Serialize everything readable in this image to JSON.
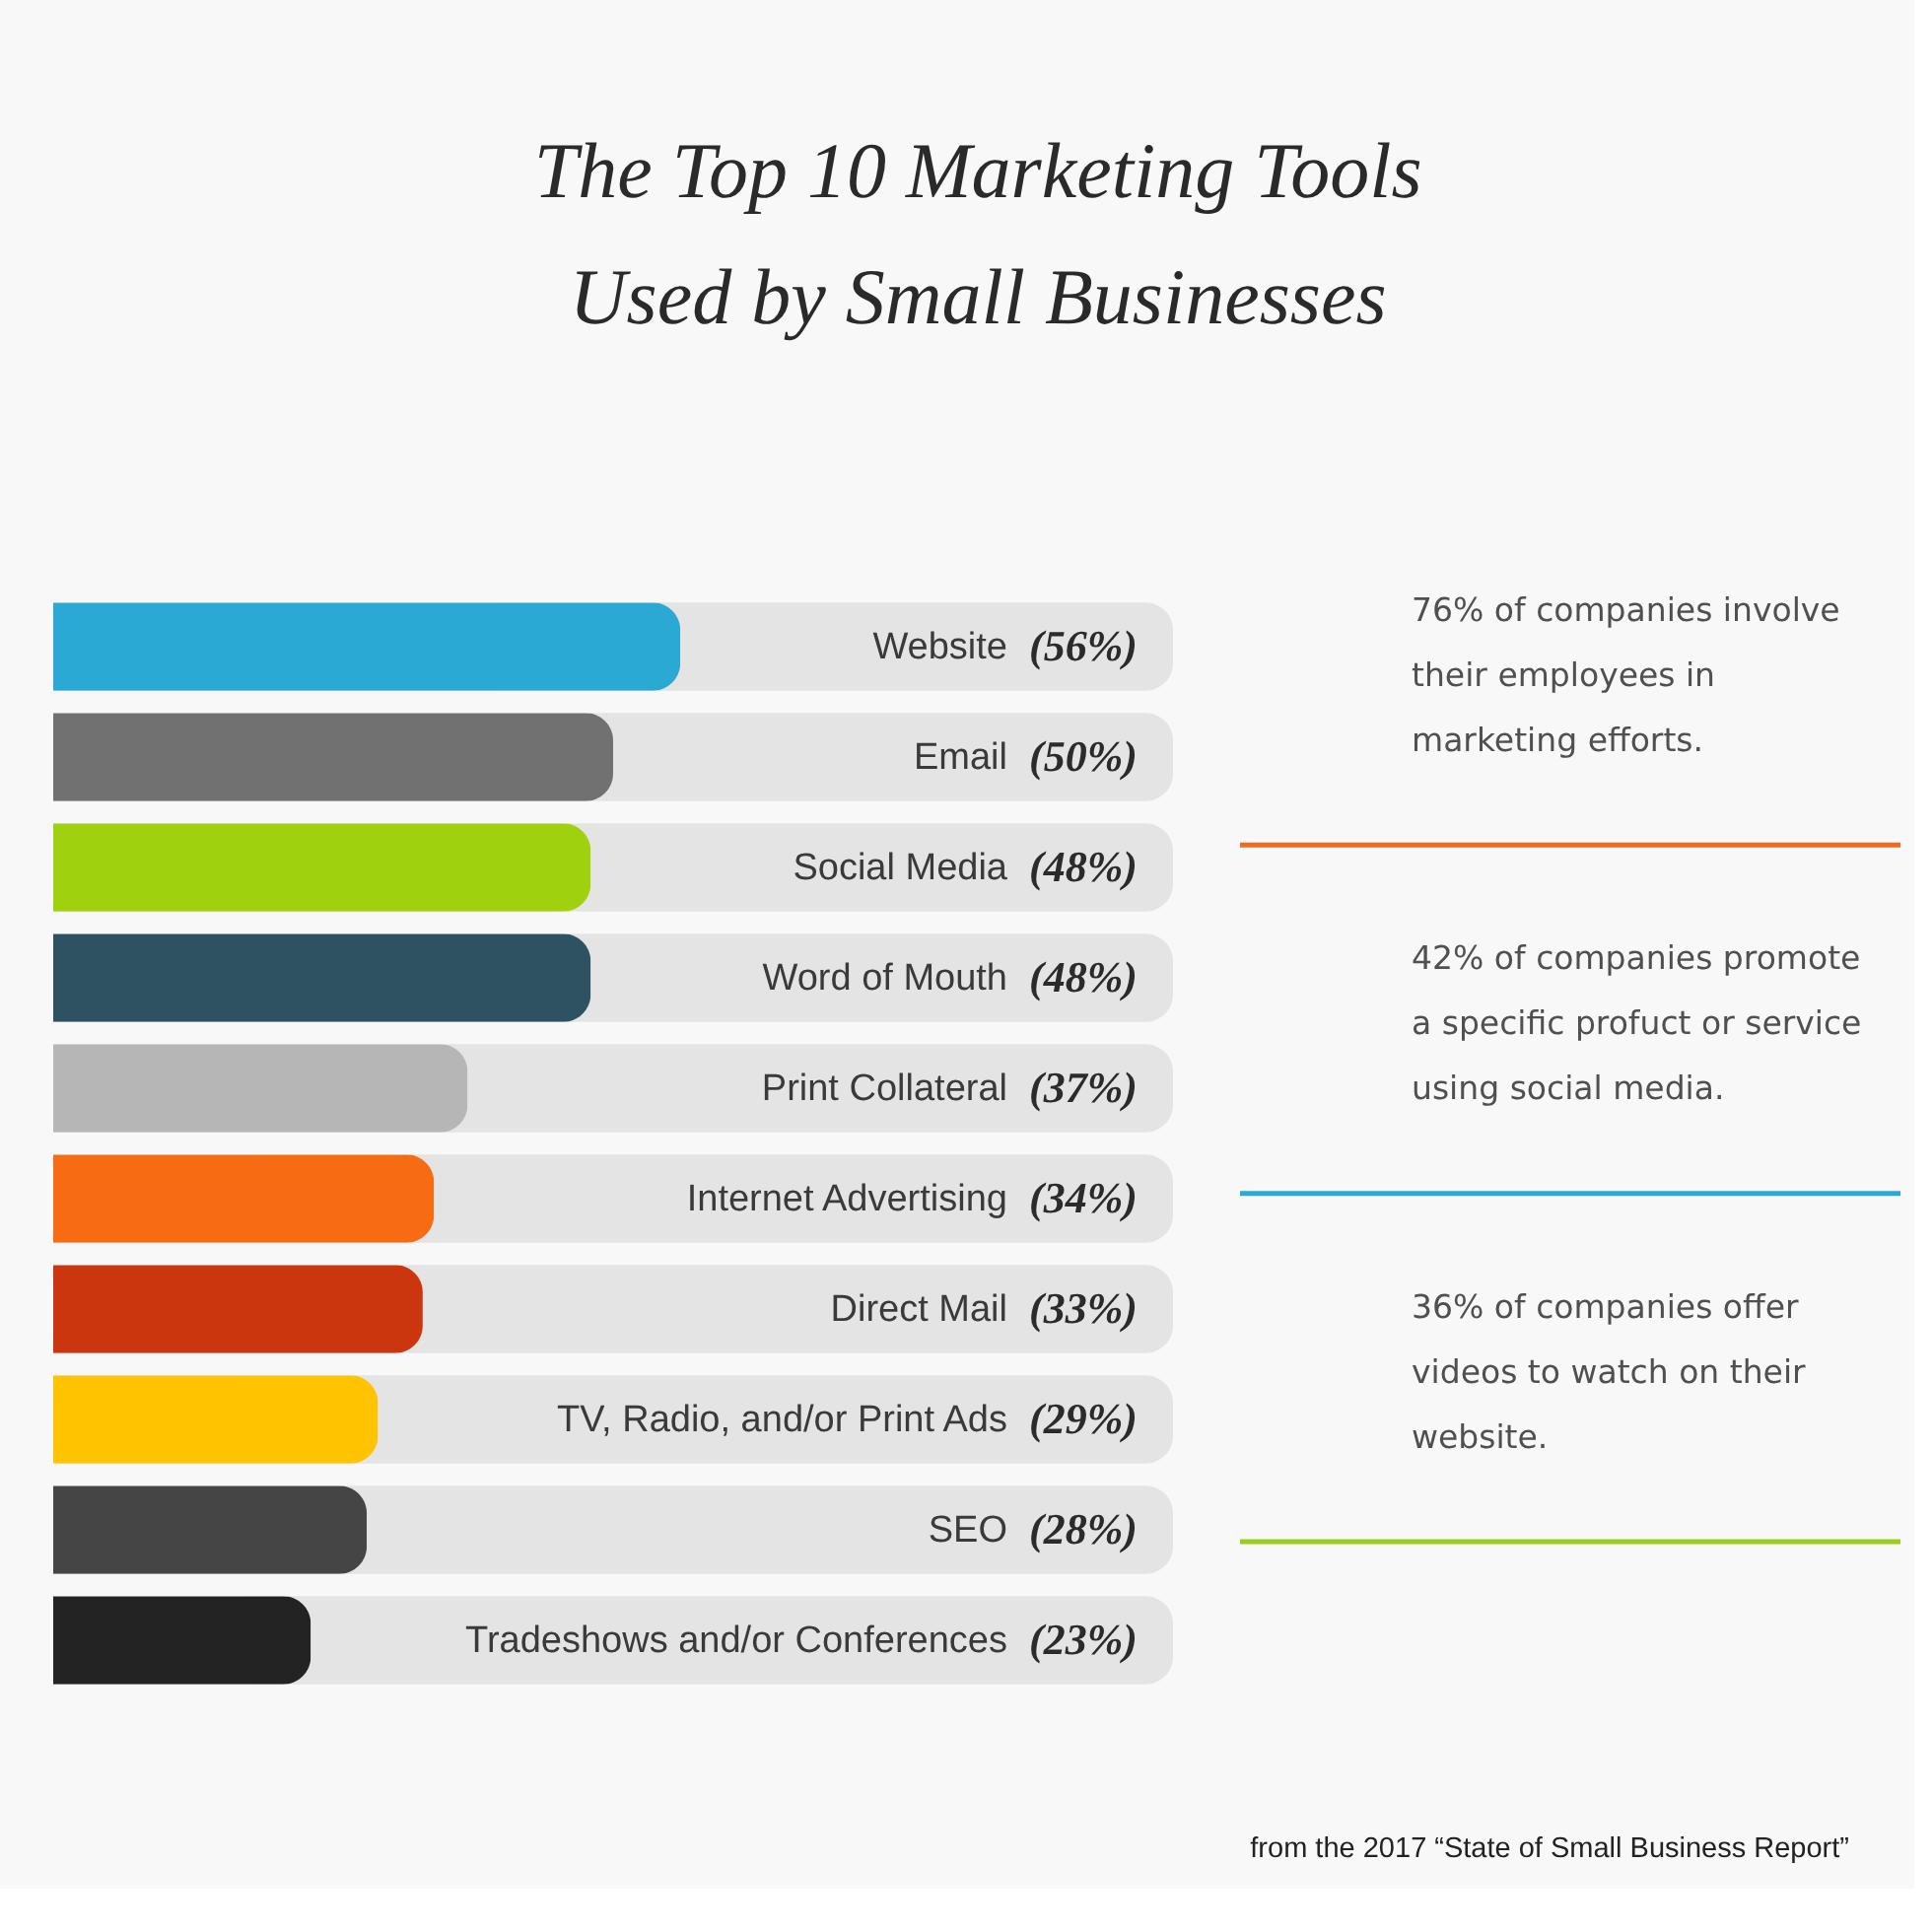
{
  "chart_data": [
    {
      "type": "bar",
      "title": "The Top 10 Marketing Tools\nUsed by Small Businesses",
      "orientation": "horizontal",
      "categories": [
        "Website",
        "Email",
        "Social Media",
        "Word of Mouth",
        "Print Collateral",
        "Internet Advertising",
        "Direct Mail",
        "TV, Radio, and/or Print Ads",
        "SEO",
        "Tradeshows and/or Conferences"
      ],
      "values": [
        56,
        50,
        48,
        48,
        37,
        34,
        33,
        29,
        28,
        23
      ],
      "colors": [
        "#29a9d3",
        "#717171",
        "#9fd10f",
        "#2f5262",
        "#b6b6b6",
        "#f76b13",
        "#cc360e",
        "#ffc300",
        "#454545",
        "#232323"
      ],
      "value_labels": [
        "(56%)",
        "(50%)",
        "(48%)",
        "(48%)",
        "(37%)",
        "(34%)",
        "(33%)",
        "(29%)",
        "(28%)",
        "(23%)"
      ],
      "xlim": [
        0,
        100
      ],
      "tick_labels": false,
      "annotations": [
        "from the 2017 “State of Small Business Report”"
      ]
    },
    {
      "type": "other",
      "annotations": [
        "76% of companies involve\ntheir employees in\nmarketing efforts.",
        "42% of companies promote\na specific profuct or service\nusing social media.",
        "36% of companies offer\nvideos to watch on their\nwebsite."
      ],
      "colors": [
        "#f26a22",
        "#2aa8d8",
        "#9ccc1c"
      ]
    }
  ]
}
